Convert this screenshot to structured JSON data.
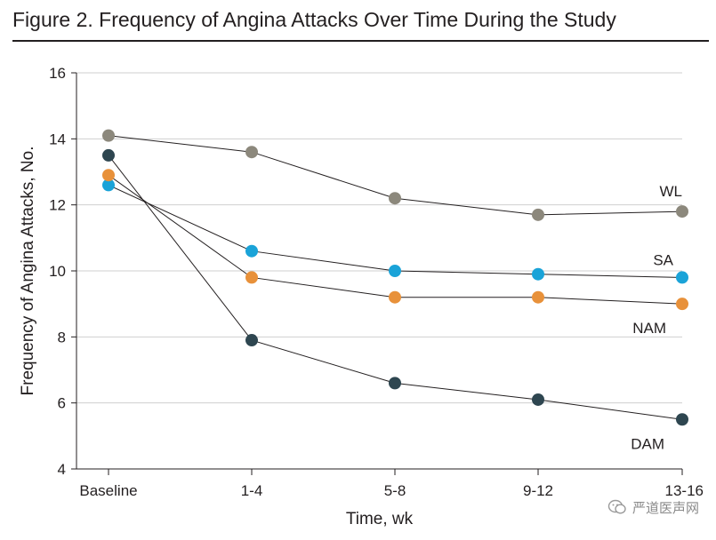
{
  "title": "Figure 2. Frequency of Angina Attacks Over Time During the Study",
  "watermark": "严道医声网",
  "chart_data": {
    "type": "line",
    "xlabel": "Time, wk",
    "ylabel": "Frequency of Angina Attacks, No.",
    "categories": [
      "Baseline",
      "1-4",
      "5-8",
      "9-12",
      "13-16"
    ],
    "ylim": [
      4,
      16
    ],
    "yticks": [
      4,
      6,
      8,
      10,
      12,
      14,
      16
    ],
    "grid": true,
    "series": [
      {
        "name": "WL",
        "color": "#8c887c",
        "values": [
          14.1,
          13.6,
          12.2,
          11.7,
          11.8
        ]
      },
      {
        "name": "SA",
        "color": "#1aa3d8",
        "values": [
          12.6,
          10.6,
          10.0,
          9.9,
          9.8
        ]
      },
      {
        "name": "NAM",
        "color": "#e8913a",
        "values": [
          12.9,
          9.8,
          9.2,
          9.2,
          9.0
        ]
      },
      {
        "name": "DAM",
        "color": "#2e4650",
        "values": [
          13.5,
          7.9,
          6.6,
          6.1,
          5.5
        ]
      }
    ]
  }
}
